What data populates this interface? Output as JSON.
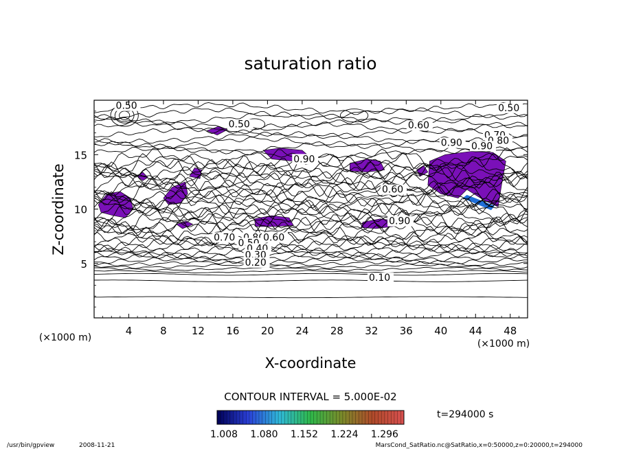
{
  "chart_data": {
    "type": "contour",
    "title": "saturation ratio",
    "xlabel": "X-coordinate",
    "ylabel": "Z-coordinate",
    "x_units": "(×1000 m)",
    "y_units": "(×1000 m)",
    "xlim": [
      0,
      50
    ],
    "ylim": [
      0,
      20
    ],
    "x_ticks": [
      "4",
      "8",
      "12",
      "16",
      "20",
      "24",
      "28",
      "32",
      "36",
      "40",
      "44",
      "48"
    ],
    "y_ticks": [
      "5",
      "10",
      "15"
    ],
    "contour_interval_label": "CONTOUR INTERVAL = 5.000E-02",
    "contour_labels": [
      {
        "text": "0.50",
        "x": 2.5,
        "z": 19.2
      },
      {
        "text": "0.50",
        "x": 46.6,
        "z": 19.0
      },
      {
        "text": "0.60",
        "x": 36.2,
        "z": 17.4
      },
      {
        "text": "0.50",
        "x": 15.5,
        "z": 17.5
      },
      {
        "text": "0.70",
        "x": 45.0,
        "z": 16.5
      },
      {
        "text": "0.80",
        "x": 45.4,
        "z": 16.0
      },
      {
        "text": "0.90",
        "x": 40.0,
        "z": 15.8
      },
      {
        "text": "0.90",
        "x": 43.5,
        "z": 15.5
      },
      {
        "text": "0.90",
        "x": 23.0,
        "z": 14.3
      },
      {
        "text": "0.60",
        "x": 33.2,
        "z": 11.5
      },
      {
        "text": "0.90",
        "x": 34.0,
        "z": 8.6
      },
      {
        "text": "0.70",
        "x": 13.8,
        "z": 7.1
      },
      {
        "text": "0.80",
        "x": 17.2,
        "z": 7.1
      },
      {
        "text": "0.60",
        "x": 19.5,
        "z": 7.1
      },
      {
        "text": "0.50",
        "x": 16.6,
        "z": 6.6
      },
      {
        "text": "0.40",
        "x": 17.6,
        "z": 6.1
      },
      {
        "text": "0.30",
        "x": 17.4,
        "z": 5.5
      },
      {
        "text": "0.20",
        "x": 17.4,
        "z": 4.8
      },
      {
        "text": "0.10",
        "x": 31.7,
        "z": 3.4
      }
    ],
    "supersaturated_regions_threshold": 1.008,
    "colorbar": {
      "ticks": [
        "1.008",
        "1.080",
        "1.152",
        "1.224",
        "1.296"
      ],
      "range": [
        1.008,
        1.296
      ],
      "colors": [
        "#000055",
        "#2a3fd6",
        "#2fb8d8",
        "#2fb84a",
        "#7a8a2a",
        "#b04a2a",
        "#d85050"
      ]
    },
    "fill_color": "#7a10b8"
  },
  "time_label": "t=294000 s",
  "footer": {
    "program": "/usr/bin/gpview",
    "date": "2008-11-21",
    "source": "MarsCond_SatRatio.nc@SatRatio,x=0:50000,z=0:20000,t=294000"
  }
}
